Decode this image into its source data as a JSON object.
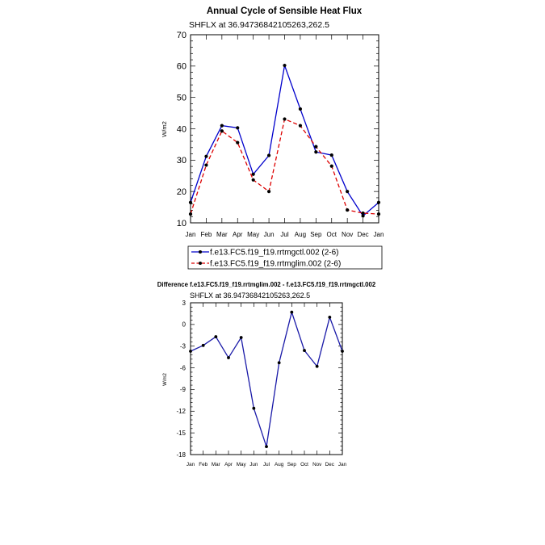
{
  "chart_data": [
    {
      "type": "line",
      "title": "Annual Cycle of Sensible Heat Flux",
      "subtitle": "SHFLX at 36.94736842105263,262.5",
      "xlabel": "",
      "ylabel": "W/m2",
      "categories": [
        "Jan",
        "Feb",
        "Mar",
        "Apr",
        "May",
        "Jun",
        "Jul",
        "Aug",
        "Sep",
        "Oct",
        "Nov",
        "Dec",
        "Jan"
      ],
      "ylim": [
        10,
        70
      ],
      "yticks": [
        10,
        20,
        30,
        40,
        50,
        60,
        70
      ],
      "grid": false,
      "legend_position": "bottom",
      "series": [
        {
          "name": "f.e13.FC5.f19_f19.rrtmgctl.002 (2-6)",
          "color": "#0000cc",
          "dash": "solid",
          "values": [
            16.5,
            31.2,
            41.0,
            40.3,
            25.5,
            31.5,
            60.2,
            46.3,
            32.6,
            31.6,
            20.0,
            12.2,
            16.5
          ]
        },
        {
          "name": "f.e13.FC5.f19_f19.rrtmglim.002 (2-6)",
          "color": "#dd0000",
          "dash": "dashed",
          "values": [
            12.8,
            28.4,
            39.3,
            35.6,
            23.7,
            20.0,
            43.1,
            41.0,
            34.3,
            28.1,
            14.1,
            13.1,
            12.8
          ]
        }
      ]
    },
    {
      "type": "line",
      "title": "Difference f.e13.FC5.f19_f19.rrtmglim.002 - f.e13.FC5.f19_f19.rrtmgctl.002",
      "subtitle": "SHFLX at 36.94736842105263,262.5",
      "xlabel": "",
      "ylabel": "W/m2",
      "categories": [
        "Jan",
        "Feb",
        "Mar",
        "Apr",
        "May",
        "Jun",
        "Jul",
        "Aug",
        "Sep",
        "Oct",
        "Nov",
        "Dec",
        "Jan"
      ],
      "ylim": [
        -18,
        3
      ],
      "yticks": [
        -18,
        -15,
        -12,
        -9,
        -6,
        -3,
        0,
        3
      ],
      "grid": false,
      "series": [
        {
          "name": "",
          "color": "#1a1aa8",
          "dash": "solid",
          "values": [
            -3.7,
            -2.9,
            -1.7,
            -4.6,
            -1.8,
            -11.6,
            -16.9,
            -5.3,
            1.7,
            -3.6,
            -5.8,
            1.0,
            -3.7
          ]
        }
      ]
    }
  ]
}
